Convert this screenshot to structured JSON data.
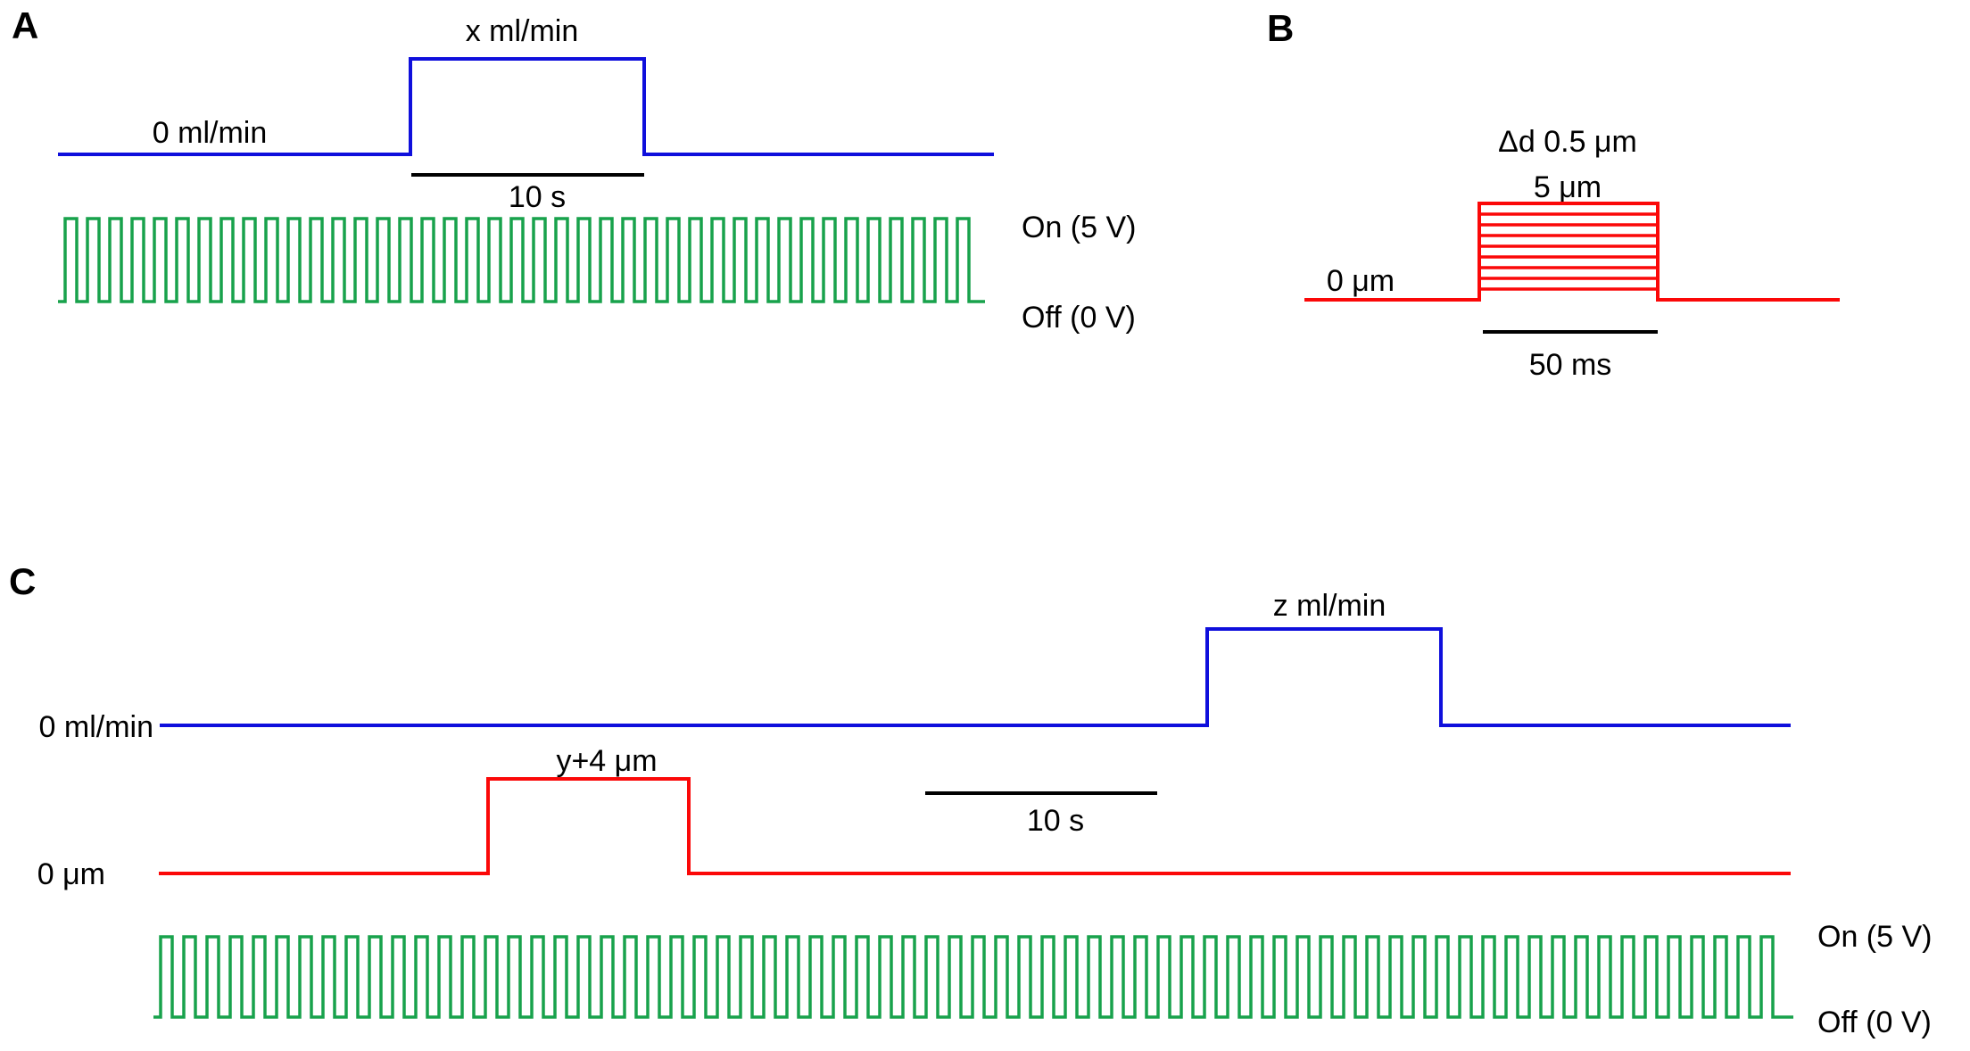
{
  "colors": {
    "flow_trace": "#0f0fdc",
    "displacement_trace": "#fb0808",
    "ultrasound_trace": "#18a24c",
    "scalebar": "#000000",
    "text": "#000000",
    "background": "#ffffff"
  },
  "panel_a": {
    "label": "A",
    "flow": {
      "baseline_label": "0 ml/min",
      "pulse_label": "x ml/min"
    },
    "scalebar_label": "10 s",
    "ultrasound": {
      "on_label": "On (5 V)",
      "off_label": "Off (0 V)"
    }
  },
  "panel_b": {
    "label": "B",
    "displacement": {
      "baseline_label": "0 μm",
      "step_label": "Δd 0.5 μm",
      "max_label": "5 μm"
    },
    "scalebar_label": "50 ms"
  },
  "panel_c": {
    "label": "C",
    "flow": {
      "baseline_label": "0 ml/min",
      "pulse_label": "z ml/min"
    },
    "displacement": {
      "baseline_label": "0 μm",
      "pulse_label": "y+4 μm"
    },
    "scalebar_label": "10 s",
    "ultrasound": {
      "on_label": "On (5 V)",
      "off_label": "Off (0 V)"
    }
  },
  "chart_data": [
    {
      "type": "line",
      "panel": "A",
      "series": [
        {
          "name": "flow rate",
          "baseline": "0 ml/min",
          "pulse_amplitude": "x ml/min",
          "pulse_duration_scalebar": "10 s"
        },
        {
          "name": "ultrasound trigger",
          "low": "Off (0 V)",
          "high": "On (5 V)",
          "waveform": "continuous square pulse train"
        }
      ]
    },
    {
      "type": "line",
      "panel": "B",
      "series": [
        {
          "name": "displacement",
          "baseline": "0 μm",
          "step_increment": "Δd 0.5 μm",
          "max_amplitude": "5 μm",
          "pulse_duration_scalebar": "50 ms",
          "waveform": "overlaid square steps from 0.5 to 5 μm in 0.5 μm increments"
        }
      ]
    },
    {
      "type": "line",
      "panel": "C",
      "series": [
        {
          "name": "flow rate",
          "baseline": "0 ml/min",
          "pulse_amplitude": "z ml/min"
        },
        {
          "name": "displacement",
          "baseline": "0 μm",
          "pulse_amplitude": "y+4 μm"
        },
        {
          "name": "ultrasound trigger",
          "low": "Off (0 V)",
          "high": "On (5 V)",
          "waveform": "continuous square pulse train"
        }
      ],
      "scalebar": "10 s"
    }
  ]
}
